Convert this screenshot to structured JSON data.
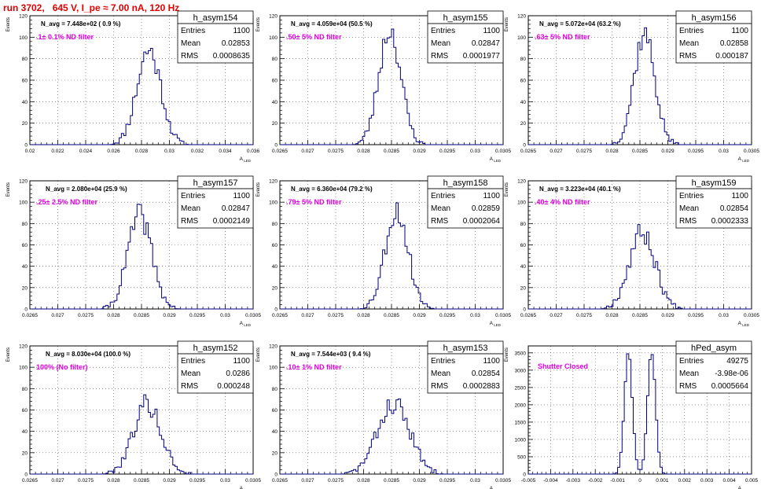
{
  "page": {
    "title": "run 3702,   645 V, I_pe ≈ 7.00 nA, 120 Hz"
  },
  "colors": {
    "histogram": "#000080",
    "label": "#e000e0",
    "title": "#e00000",
    "grid": "#555555",
    "frame": "#000000"
  },
  "chart_data": [
    {
      "type": "histogram",
      "name": "h_asym154",
      "ylabel": "Events",
      "xlabel": "A_LED",
      "n_avg_label": "N_avg = 7.448e+02 ( 0.9 %)",
      "annotation": ".1± 0.1% ND filter",
      "stats": [
        [
          "Entries",
          "1100"
        ],
        [
          "Mean",
          "0.02853"
        ],
        [
          "RMS",
          "0.0008635"
        ]
      ],
      "xlim": [
        0.02,
        0.036
      ],
      "ylim": [
        0,
        120
      ],
      "xticks": [
        0.02,
        0.022,
        0.024,
        0.026,
        0.028,
        0.03,
        0.032,
        0.034,
        0.036
      ],
      "xtick_labels": [
        "0.02",
        "0.022",
        "0.024",
        "0.026",
        "0.028",
        "0.03",
        "0.032",
        "0.034",
        "0.036"
      ],
      "yticks": [
        0,
        20,
        40,
        60,
        80,
        100,
        120
      ],
      "ytick_labels": [
        "0",
        "20",
        "40",
        "60",
        "80",
        "100",
        "120"
      ],
      "mean": 0.02853,
      "rms": 0.0008635,
      "peak": 88,
      "seed": 11
    },
    {
      "type": "histogram",
      "name": "h_asym155",
      "ylabel": "Events",
      "xlabel": "A_LED",
      "n_avg_label": "N_avg = 4.059e+04 (50.5 %)",
      "annotation": ".50± 5% ND filter",
      "stats": [
        [
          "Entries",
          "1100"
        ],
        [
          "Mean",
          "0.02847"
        ],
        [
          "RMS",
          "0.0001977"
        ]
      ],
      "xlim": [
        0.0265,
        0.0305
      ],
      "ylim": [
        0,
        120
      ],
      "xticks": [
        0.0265,
        0.027,
        0.0275,
        0.028,
        0.0285,
        0.029,
        0.0295,
        0.03,
        0.0305
      ],
      "xtick_labels": [
        "0.0265",
        "0.027",
        "0.0275",
        "0.028",
        "0.0285",
        "0.029",
        "0.0295",
        "0.03",
        "0.0305"
      ],
      "yticks": [
        0,
        20,
        40,
        60,
        80,
        100,
        120
      ],
      "ytick_labels": [
        "0",
        "20",
        "40",
        "60",
        "80",
        "100",
        "120"
      ],
      "mean": 0.02847,
      "rms": 0.0001977,
      "peak": 107,
      "seed": 23
    },
    {
      "type": "histogram",
      "name": "h_asym156",
      "ylabel": "Events",
      "xlabel": "A_LED",
      "n_avg_label": "N_avg = 5.072e+04 (63.2 %)",
      "annotation": ".63± 5% ND filter",
      "stats": [
        [
          "Entries",
          "1100"
        ],
        [
          "Mean",
          "0.02858"
        ],
        [
          "RMS",
          "0.000187"
        ]
      ],
      "xlim": [
        0.0265,
        0.0305
      ],
      "ylim": [
        0,
        120
      ],
      "xticks": [
        0.0265,
        0.027,
        0.0275,
        0.028,
        0.0285,
        0.029,
        0.0295,
        0.03,
        0.0305
      ],
      "xtick_labels": [
        "0.0265",
        "0.027",
        "0.0275",
        "0.028",
        "0.0285",
        "0.029",
        "0.0295",
        "0.03",
        "0.0305"
      ],
      "yticks": [
        0,
        20,
        40,
        60,
        80,
        100,
        120
      ],
      "ytick_labels": [
        "0",
        "20",
        "40",
        "60",
        "80",
        "100",
        "120"
      ],
      "mean": 0.02858,
      "rms": 0.000187,
      "peak": 103,
      "seed": 37
    },
    {
      "type": "histogram",
      "name": "h_asym157",
      "ylabel": "Events",
      "xlabel": "A_LED",
      "n_avg_label": "N_avg = 2.080e+04 (25.9 %)",
      "annotation": ".25± 2.5% ND filter",
      "stats": [
        [
          "Entries",
          "1100"
        ],
        [
          "Mean",
          "0.02847"
        ],
        [
          "RMS",
          "0.0002149"
        ]
      ],
      "xlim": [
        0.0265,
        0.0305
      ],
      "ylim": [
        0,
        120
      ],
      "xticks": [
        0.0265,
        0.027,
        0.0275,
        0.028,
        0.0285,
        0.029,
        0.0295,
        0.03,
        0.0305
      ],
      "xtick_labels": [
        "0.0265",
        "0.027",
        "0.0275",
        "0.028",
        "0.0285",
        "0.029",
        "0.0295",
        "0.03",
        "0.0305"
      ],
      "yticks": [
        0,
        20,
        40,
        60,
        80,
        100,
        120
      ],
      "ytick_labels": [
        "0",
        "20",
        "40",
        "60",
        "80",
        "100",
        "120"
      ],
      "mean": 0.02847,
      "rms": 0.0002149,
      "peak": 88,
      "seed": 41
    },
    {
      "type": "histogram",
      "name": "h_asym158",
      "ylabel": "Events",
      "xlabel": "A_LED",
      "n_avg_label": "N_avg = 6.360e+04 (79.2 %)",
      "annotation": ".79± 5% ND filter",
      "stats": [
        [
          "Entries",
          "1100"
        ],
        [
          "Mean",
          "0.02859"
        ],
        [
          "RMS",
          "0.0002064"
        ]
      ],
      "xlim": [
        0.0265,
        0.0305
      ],
      "ylim": [
        0,
        120
      ],
      "xticks": [
        0.0265,
        0.027,
        0.0275,
        0.028,
        0.0285,
        0.029,
        0.0295,
        0.03,
        0.0305
      ],
      "xtick_labels": [
        "0.0265",
        "0.027",
        "0.0275",
        "0.028",
        "0.0285",
        "0.029",
        "0.0295",
        "0.03",
        "0.0305"
      ],
      "yticks": [
        0,
        20,
        40,
        60,
        80,
        100,
        120
      ],
      "ytick_labels": [
        "0",
        "20",
        "40",
        "60",
        "80",
        "100",
        "120"
      ],
      "mean": 0.02859,
      "rms": 0.0002064,
      "peak": 92,
      "seed": 53
    },
    {
      "type": "histogram",
      "name": "h_asym159",
      "ylabel": "Events",
      "xlabel": "A_LED",
      "n_avg_label": "N_avg = 3.223e+04 (40.1 %)",
      "annotation": ".40± 4% ND filter",
      "stats": [
        [
          "Entries",
          "1100"
        ],
        [
          "Mean",
          "0.02854"
        ],
        [
          "RMS",
          "0.0002333"
        ]
      ],
      "xlim": [
        0.0265,
        0.0305
      ],
      "ylim": [
        0,
        120
      ],
      "xticks": [
        0.0265,
        0.027,
        0.0275,
        0.028,
        0.0285,
        0.029,
        0.0295,
        0.03,
        0.0305
      ],
      "xtick_labels": [
        "0.0265",
        "0.027",
        "0.0275",
        "0.028",
        "0.0285",
        "0.029",
        "0.0295",
        "0.03",
        "0.0305"
      ],
      "yticks": [
        0,
        20,
        40,
        60,
        80,
        100,
        120
      ],
      "ytick_labels": [
        "0",
        "20",
        "40",
        "60",
        "80",
        "100",
        "120"
      ],
      "mean": 0.02854,
      "rms": 0.0002333,
      "peak": 72,
      "seed": 67
    },
    {
      "type": "histogram",
      "name": "h_asym152",
      "ylabel": "Events",
      "xlabel": "A_LED",
      "n_avg_label": "N_avg = 8.030e+04 (100.0 %)",
      "annotation": "100% (No filter)",
      "stats": [
        [
          "Entries",
          "1100"
        ],
        [
          "Mean",
          "0.0286"
        ],
        [
          "RMS",
          "0.000248"
        ]
      ],
      "xlim": [
        0.0265,
        0.0305
      ],
      "ylim": [
        0,
        120
      ],
      "xticks": [
        0.0265,
        0.027,
        0.0275,
        0.028,
        0.0285,
        0.029,
        0.0295,
        0.03,
        0.0305
      ],
      "xtick_labels": [
        "0.0265",
        "0.027",
        "0.0275",
        "0.028",
        "0.0285",
        "0.029",
        "0.0295",
        "0.03",
        "0.0305"
      ],
      "yticks": [
        0,
        20,
        40,
        60,
        80,
        100,
        120
      ],
      "ytick_labels": [
        "0",
        "20",
        "40",
        "60",
        "80",
        "100",
        "120"
      ],
      "mean": 0.0286,
      "rms": 0.000248,
      "peak": 66,
      "seed": 79
    },
    {
      "type": "histogram",
      "name": "h_asym153",
      "ylabel": "Events",
      "xlabel": "A_LED",
      "n_avg_label": "N_avg = 7.544e+03 ( 9.4 %)",
      "annotation": ".10± 1% ND filter",
      "stats": [
        [
          "Entries",
          "1100"
        ],
        [
          "Mean",
          "0.02854"
        ],
        [
          "RMS",
          "0.0002883"
        ]
      ],
      "xlim": [
        0.0265,
        0.0305
      ],
      "ylim": [
        0,
        120
      ],
      "xticks": [
        0.0265,
        0.027,
        0.0275,
        0.028,
        0.0285,
        0.029,
        0.0295,
        0.03,
        0.0305
      ],
      "xtick_labels": [
        "0.0265",
        "0.027",
        "0.0275",
        "0.028",
        "0.0285",
        "0.029",
        "0.0295",
        "0.03",
        "0.0305"
      ],
      "yticks": [
        0,
        20,
        40,
        60,
        80,
        100,
        120
      ],
      "ytick_labels": [
        "0",
        "20",
        "40",
        "60",
        "80",
        "100",
        "120"
      ],
      "mean": 0.02854,
      "rms": 0.0002883,
      "peak": 66,
      "seed": 83
    },
    {
      "type": "histogram",
      "name": "hPed_asym",
      "ylabel": "Events",
      "xlabel": "A_LED",
      "n_avg_label": "",
      "annotation": "Shutter Closed",
      "stats": [
        [
          "Entries",
          "49275"
        ],
        [
          "Mean",
          "-3.98e-06"
        ],
        [
          "RMS",
          "0.0005664"
        ]
      ],
      "xlim": [
        -0.005,
        0.005
      ],
      "ylim": [
        0,
        3700
      ],
      "xticks": [
        -0.005,
        -0.004,
        -0.003,
        -0.002,
        -0.001,
        0,
        0.001,
        0.002,
        0.003,
        0.004,
        0.005
      ],
      "xtick_labels": [
        "-0.005",
        "-0.004",
        "-0.003",
        "-0.002",
        "-0.001",
        "0",
        "0.001",
        "0.002",
        "0.003",
        "0.004",
        "0.005"
      ],
      "yticks": [
        0,
        500,
        1000,
        1500,
        2000,
        2500,
        3000,
        3500
      ],
      "ytick_labels": [
        "0",
        "500",
        "1000",
        "1500",
        "2000",
        "2500",
        "3000",
        "3500"
      ],
      "mean": -3.98e-06,
      "rms": 0.0005664,
      "peak": 3520,
      "seed": 97,
      "bimodal": [
        -0.00052,
        0.00052
      ],
      "mode_width": 0.00018
    }
  ]
}
